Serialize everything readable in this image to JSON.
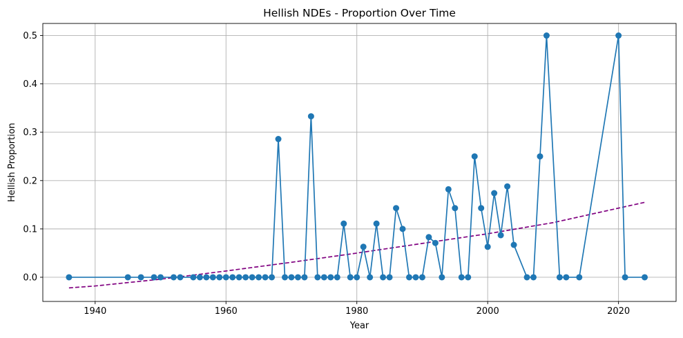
{
  "chart_data": {
    "type": "line",
    "title": "Hellish NDEs - Proportion Over Time",
    "xlabel": "Year",
    "ylabel": "Hellish Proportion",
    "xlim": [
      1932,
      2028.8
    ],
    "ylim": [
      -0.05,
      0.525
    ],
    "xticks": [
      1940,
      1960,
      1980,
      2000,
      2020
    ],
    "yticks": [
      0.0,
      0.1,
      0.2,
      0.3,
      0.4,
      0.5
    ],
    "xtick_labels": [
      "1940",
      "1960",
      "1980",
      "2000",
      "2020"
    ],
    "ytick_labels": [
      "0.0",
      "0.1",
      "0.2",
      "0.3",
      "0.4",
      "0.5"
    ],
    "grid": true,
    "colors": {
      "series": "#1f77b4",
      "trend": "#800080"
    },
    "series": [
      {
        "style": "line-with-markers",
        "x": [
          1936,
          1945,
          1947,
          1949,
          1950,
          1952,
          1953,
          1955,
          1956,
          1957,
          1958,
          1959,
          1960,
          1961,
          1962,
          1963,
          1964,
          1965,
          1966,
          1967,
          1968,
          1969,
          1970,
          1971,
          1972,
          1973,
          1974,
          1975,
          1976,
          1977,
          1978,
          1979,
          1980,
          1981,
          1982,
          1983,
          1984,
          1985,
          1986,
          1987,
          1988,
          1989,
          1990,
          1991,
          1992,
          1993,
          1994,
          1995,
          1996,
          1997,
          1998,
          1999,
          2000,
          2001,
          2002,
          2003,
          2004,
          2006,
          2007,
          2008,
          2009,
          2011,
          2012,
          2014,
          2020,
          2021,
          2024
        ],
        "y": [
          0,
          0,
          0,
          0,
          0,
          0,
          0,
          0,
          0,
          0,
          0,
          0,
          0,
          0,
          0,
          0,
          0,
          0,
          0,
          0,
          0.286,
          0,
          0,
          0,
          0,
          0.333,
          0,
          0,
          0,
          0,
          0.111,
          0,
          0,
          0.063,
          0,
          0.111,
          0,
          0,
          0.143,
          0.1,
          0,
          0,
          0,
          0.083,
          0.071,
          0,
          0.182,
          0.143,
          0,
          0,
          0.25,
          0.143,
          0.063,
          0.174,
          0.087,
          0.188,
          0.067,
          0,
          0,
          0.25,
          0.5,
          0,
          0,
          0,
          0.5,
          0,
          0
        ]
      },
      {
        "style": "dashed-trend",
        "x": [
          1936,
          1940,
          1950,
          1960,
          1970,
          1980,
          1990,
          2000,
          2010,
          2024
        ],
        "y": [
          -0.022,
          -0.018,
          -0.004,
          0.013,
          0.031,
          0.05,
          0.07,
          0.09,
          0.113,
          0.155
        ]
      }
    ]
  }
}
